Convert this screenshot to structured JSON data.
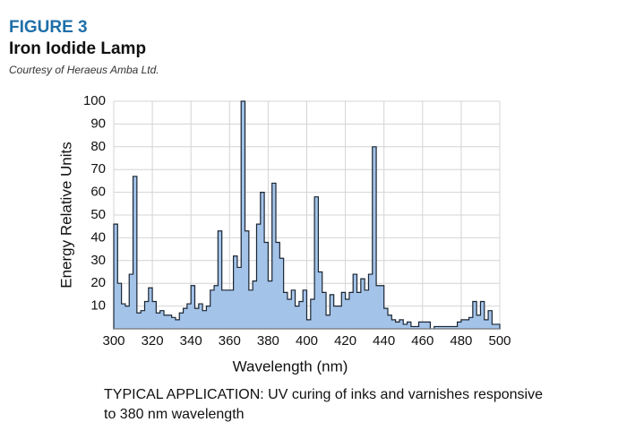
{
  "chart_data": {
    "type": "step-area",
    "figure_label": "FIGURE 3",
    "title": "Iron Iodide Lamp",
    "subtitle": "Courtesy of Heraeus Amba Ltd.",
    "x_label": "Wavelength (nm)",
    "y_label": "Energy Relative Units",
    "caption_lines": [
      "TYPICAL APPLICATION: UV curing of inks and varnishes responsive",
      "to 380 nm wavelength"
    ],
    "x": [
      300,
      302,
      304,
      306,
      308,
      310,
      312,
      314,
      316,
      318,
      320,
      322,
      324,
      326,
      328,
      330,
      332,
      334,
      336,
      338,
      340,
      342,
      344,
      346,
      348,
      350,
      352,
      354,
      356,
      358,
      360,
      362,
      364,
      366,
      368,
      370,
      372,
      374,
      376,
      378,
      380,
      382,
      384,
      386,
      388,
      390,
      392,
      394,
      396,
      398,
      400,
      402,
      404,
      406,
      408,
      410,
      412,
      414,
      416,
      418,
      420,
      422,
      424,
      426,
      428,
      430,
      432,
      434,
      436,
      438,
      440,
      442,
      444,
      446,
      448,
      450,
      452,
      454,
      456,
      458,
      460,
      462,
      464,
      466,
      468,
      470,
      472,
      474,
      476,
      478,
      480,
      482,
      484,
      486,
      488,
      490,
      492,
      494,
      496,
      498
    ],
    "values": [
      46,
      20,
      11,
      10,
      24,
      67,
      7,
      8,
      12,
      18,
      12,
      7,
      8,
      6,
      6,
      5,
      4,
      7,
      9,
      11,
      19,
      9,
      11,
      8,
      10,
      17,
      19,
      43,
      17,
      17,
      17,
      32,
      27,
      100,
      43,
      17,
      21,
      46,
      60,
      38,
      21,
      64,
      38,
      31,
      16,
      13,
      17,
      10,
      12,
      17,
      4,
      13,
      58,
      25,
      16,
      6,
      15,
      10,
      10,
      16,
      13,
      16,
      24,
      16,
      22,
      17,
      24,
      80,
      19,
      19,
      9,
      6,
      4,
      3,
      4,
      2,
      3,
      1,
      1,
      3,
      3,
      3,
      0,
      1,
      1,
      1,
      1,
      1,
      1,
      3,
      4,
      4,
      5,
      12,
      6,
      12,
      4,
      8,
      2,
      2
    ],
    "color": "#a3c3e9",
    "line_color": "#1b2633",
    "xlim": [
      300,
      500
    ],
    "xticks": [
      300,
      320,
      340,
      360,
      380,
      400,
      420,
      440,
      460,
      480,
      500
    ],
    "ylim": [
      0,
      100
    ],
    "yticks": [
      10,
      20,
      30,
      40,
      50,
      60,
      70,
      80,
      90,
      100
    ],
    "grid": true
  }
}
